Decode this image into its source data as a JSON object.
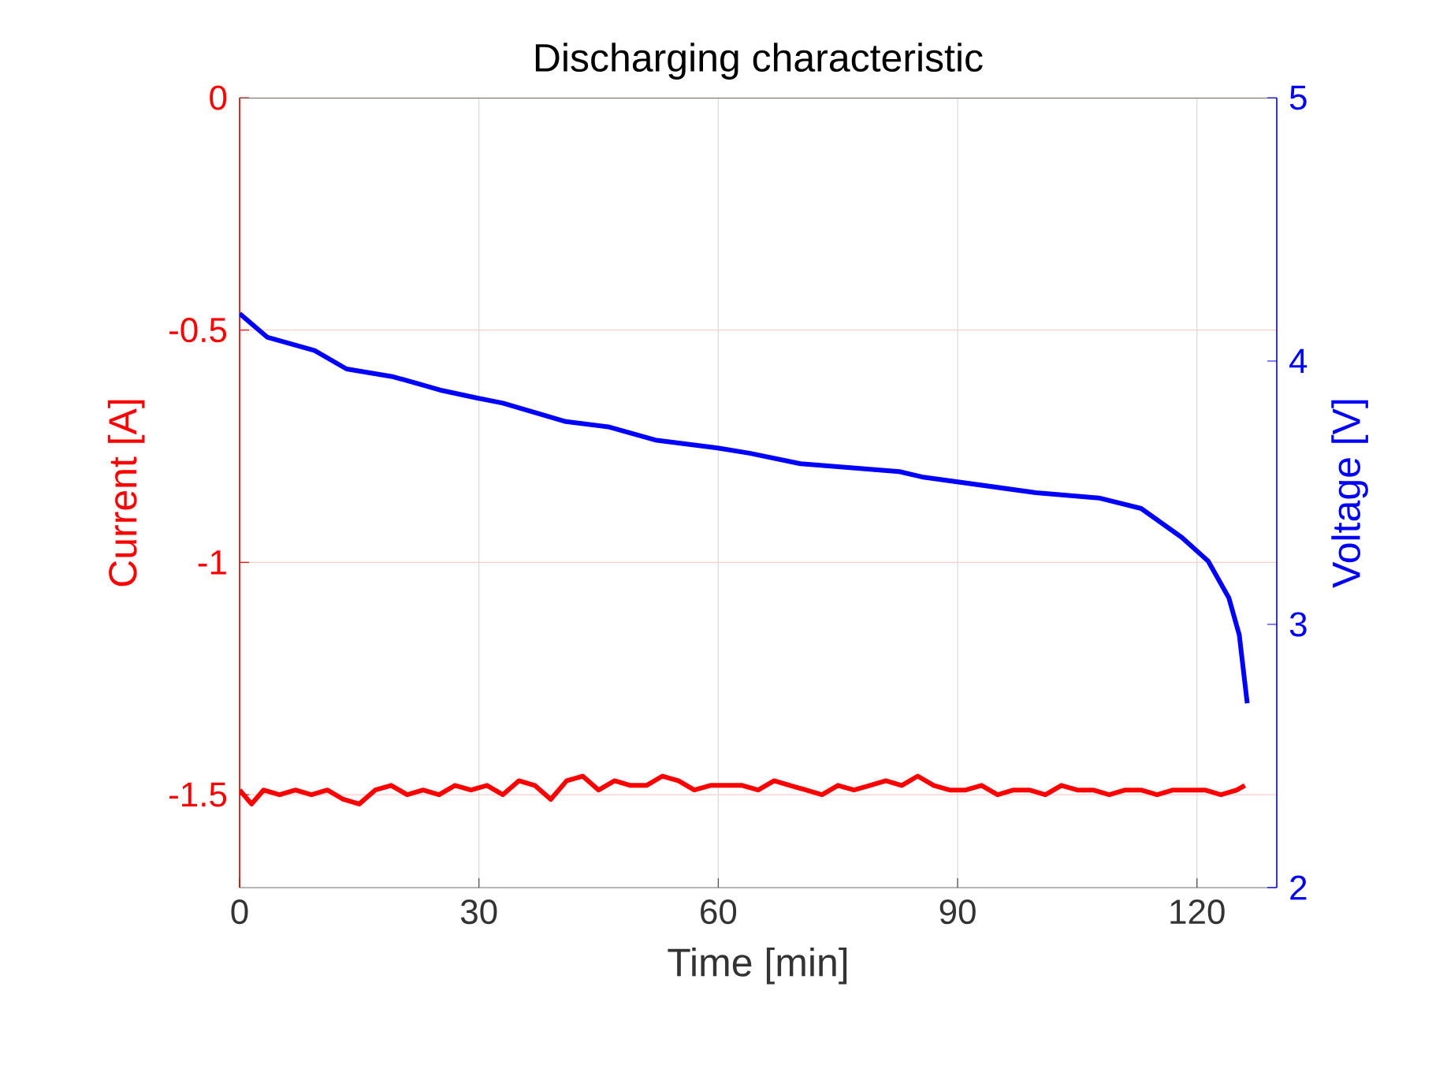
{
  "chart_data": {
    "type": "line",
    "title": "Discharging characteristic",
    "xlabel": "Time [min]",
    "ylabel": "Current [A]",
    "y2label": "Voltage [V]",
    "xlim": [
      0,
      130
    ],
    "xticks": [
      0,
      30,
      60,
      90,
      120
    ],
    "ylim": [
      -1.7,
      0
    ],
    "yticks": [
      0,
      -0.5,
      -1,
      -1.5
    ],
    "y2lim": [
      2,
      5
    ],
    "y2ticks": [
      2,
      3,
      4,
      5
    ],
    "grid": true,
    "line_style": "solid",
    "series": [
      {
        "color": "#ff0000",
        "x": [
          0,
          1.5,
          3,
          5,
          7,
          9,
          11,
          13,
          15,
          17,
          19,
          21,
          23,
          25,
          27,
          29,
          31,
          33,
          35,
          37,
          39,
          41,
          43,
          45,
          47,
          49,
          51,
          53,
          55,
          57,
          59,
          61,
          63,
          65,
          67,
          69,
          71,
          73,
          75,
          77,
          79,
          81,
          83,
          85,
          87,
          89,
          91,
          93,
          95,
          97,
          99,
          101,
          103,
          105,
          107,
          109,
          111,
          113,
          115,
          117,
          119,
          121,
          123,
          125,
          126
        ],
        "values": [
          -1.49,
          -1.52,
          -1.49,
          -1.5,
          -1.49,
          -1.5,
          -1.49,
          -1.51,
          -1.52,
          -1.49,
          -1.48,
          -1.5,
          -1.49,
          -1.5,
          -1.48,
          -1.49,
          -1.48,
          -1.5,
          -1.47,
          -1.48,
          -1.51,
          -1.47,
          -1.46,
          -1.49,
          -1.47,
          -1.48,
          -1.48,
          -1.46,
          -1.47,
          -1.49,
          -1.48,
          -1.48,
          -1.48,
          -1.49,
          -1.47,
          -1.48,
          -1.49,
          -1.5,
          -1.48,
          -1.49,
          -1.48,
          -1.47,
          -1.48,
          -1.46,
          -1.48,
          -1.49,
          -1.49,
          -1.48,
          -1.5,
          -1.49,
          -1.49,
          -1.5,
          -1.48,
          -1.49,
          -1.49,
          -1.5,
          -1.49,
          -1.49,
          -1.5,
          -1.49,
          -1.49,
          -1.49,
          -1.5,
          -1.49,
          -1.48
        ]
      },
      {
        "color": "#0000ff",
        "axis": "y2",
        "x": [
          0,
          3.5,
          9.4,
          13.4,
          19.3,
          25.1,
          29.7,
          33,
          40.9,
          46.2,
          52.1,
          59.9,
          63.9,
          70.3,
          82.7,
          85.5,
          99.8,
          107.7,
          113,
          118.1,
          121.4,
          124,
          125.3,
          126.3
        ],
        "values": [
          4.18,
          4.09,
          4.04,
          3.97,
          3.94,
          3.89,
          3.86,
          3.84,
          3.77,
          3.75,
          3.7,
          3.67,
          3.65,
          3.61,
          3.58,
          3.56,
          3.5,
          3.48,
          3.44,
          3.33,
          3.24,
          3.1,
          2.96,
          2.7
        ]
      }
    ]
  }
}
